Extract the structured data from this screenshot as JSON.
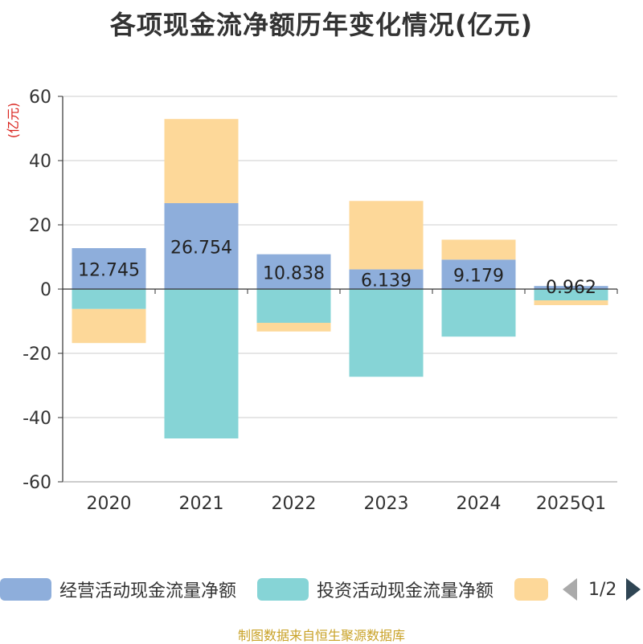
{
  "title": "各项现金流净额历年变化情况(亿元)",
  "footer": "制图数据来自恒生聚源数据库",
  "legend_pager": "1/2",
  "chart_data": {
    "type": "bar",
    "stacked": true,
    "title": "各项现金流净额历年变化情况(亿元)",
    "ylabel": "(亿元)",
    "xlabel": "",
    "ylim": [
      -60,
      60
    ],
    "yticks": [
      60,
      40,
      20,
      0,
      -20,
      -40,
      -60
    ],
    "grid": true,
    "legend_position": "bottom",
    "categories": [
      "2020",
      "2021",
      "2022",
      "2023",
      "2024",
      "2025Q1"
    ],
    "series": [
      {
        "name": "经营活动现金流量净额",
        "color": "#8eaedb",
        "values": [
          12.745,
          26.754,
          10.838,
          6.139,
          9.179,
          0.962
        ],
        "labels": [
          "12.745",
          "26.754",
          "10.838",
          "6.139",
          "9.179",
          "0.962"
        ]
      },
      {
        "name": "投资活动现金流量净额",
        "color": "#86d4d6",
        "values": [
          -6.2,
          -46.5,
          -10.5,
          -27.3,
          -14.8,
          -3.5
        ]
      },
      {
        "name": "",
        "color": "#fdd899",
        "values": [
          -10.6,
          26.2,
          -2.7,
          21.3,
          6.2,
          -1.5
        ]
      }
    ]
  }
}
